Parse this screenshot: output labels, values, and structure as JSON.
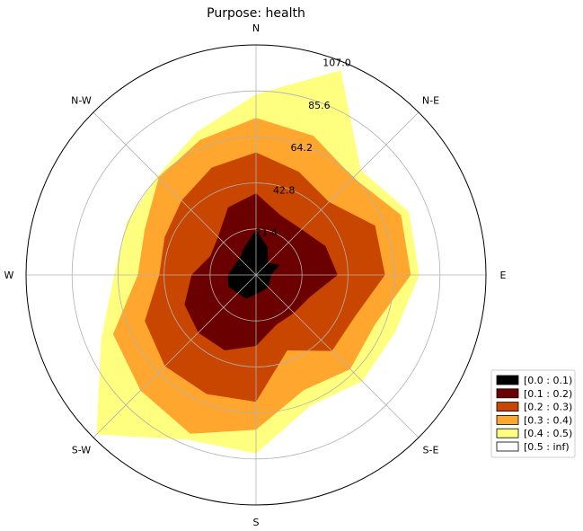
{
  "chart_data": {
    "type": "windrose",
    "title": "Purpose: health",
    "directions": [
      "N",
      "N-E",
      "E",
      "S-E",
      "S",
      "S-W",
      "W",
      "N-W"
    ],
    "radial_ticks": [
      "21.4",
      "42.8",
      "64.2",
      "85.6",
      "107.0"
    ],
    "rmax": 107.0,
    "legend_placement": "lower-right",
    "angles_deg": [
      0,
      22.5,
      45,
      67.5,
      90,
      112.5,
      135,
      157.5,
      180,
      202.5,
      225,
      247.5,
      270,
      292.5,
      315,
      337.5
    ],
    "series": [
      {
        "name": "[0.0 : 0.1)",
        "color": "#000000",
        "values": [
          21,
          14,
          8,
          12,
          7,
          7,
          8,
          8,
          9,
          12,
          12,
          14,
          13,
          11,
          11,
          14
        ]
      },
      {
        "name": "[0.1 : 0.2)",
        "color": "#6b0000",
        "values": [
          38,
          30,
          30,
          35,
          38,
          27,
          25,
          25,
          33,
          38,
          38,
          36,
          30,
          23,
          25,
          34
        ]
      },
      {
        "name": "[0.2 : 0.3)",
        "color": "#c94600",
        "values": [
          57,
          52,
          48,
          60,
          60,
          50,
          50,
          38,
          59,
          60,
          60,
          56,
          45,
          46,
          49,
          54
        ]
      },
      {
        "name": "[0.3 : 0.4)",
        "color": "#ffa62f",
        "values": [
          73,
          70,
          64,
          73,
          72,
          60,
          62,
          58,
          72,
          80,
          76,
          72,
          55,
          56,
          64,
          68
        ]
      },
      {
        "name": "[0.4 : 0.5)",
        "color": "#ffff7f",
        "values": [
          84,
          103,
          69,
          77,
          76,
          70,
          70,
          66,
          83,
          83,
          105,
          78,
          66,
          65,
          65,
          72
        ]
      },
      {
        "name": "[0.5 : inf)",
        "color": "#ffffff",
        "values": []
      }
    ]
  }
}
